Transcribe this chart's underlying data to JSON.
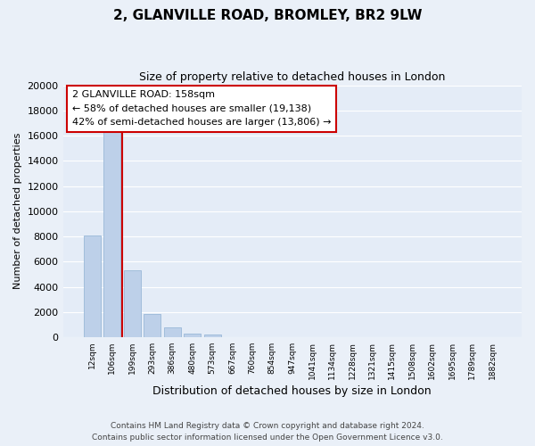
{
  "title": "2, GLANVILLE ROAD, BROMLEY, BR2 9LW",
  "subtitle": "Size of property relative to detached houses in London",
  "xlabel": "Distribution of detached houses by size in London",
  "ylabel": "Number of detached properties",
  "categories": [
    "12sqm",
    "106sqm",
    "199sqm",
    "293sqm",
    "386sqm",
    "480sqm",
    "573sqm",
    "667sqm",
    "760sqm",
    "854sqm",
    "947sqm",
    "1041sqm",
    "1134sqm",
    "1228sqm",
    "1321sqm",
    "1415sqm",
    "1508sqm",
    "1602sqm",
    "1695sqm",
    "1789sqm",
    "1882sqm"
  ],
  "values": [
    8100,
    16600,
    5300,
    1850,
    750,
    280,
    230,
    0,
    0,
    0,
    0,
    0,
    0,
    0,
    0,
    0,
    0,
    0,
    0,
    0,
    0
  ],
  "bar_color": "#bdd0e9",
  "bar_edge_color": "#9ab8d8",
  "background_color": "#e4ecf7",
  "grid_color": "#ffffff",
  "vline_x": 1.5,
  "vline_color": "#cc0000",
  "ylim": [
    0,
    20000
  ],
  "yticks": [
    0,
    2000,
    4000,
    6000,
    8000,
    10000,
    12000,
    14000,
    16000,
    18000,
    20000
  ],
  "annotation_title": "2 GLANVILLE ROAD: 158sqm",
  "annotation_line1": "← 58% of detached houses are smaller (19,138)",
  "annotation_line2": "42% of semi-detached houses are larger (13,806) →",
  "annotation_box_facecolor": "#ffffff",
  "annotation_box_edgecolor": "#cc0000",
  "footer_line1": "Contains HM Land Registry data © Crown copyright and database right 2024.",
  "footer_line2": "Contains public sector information licensed under the Open Government Licence v3.0."
}
